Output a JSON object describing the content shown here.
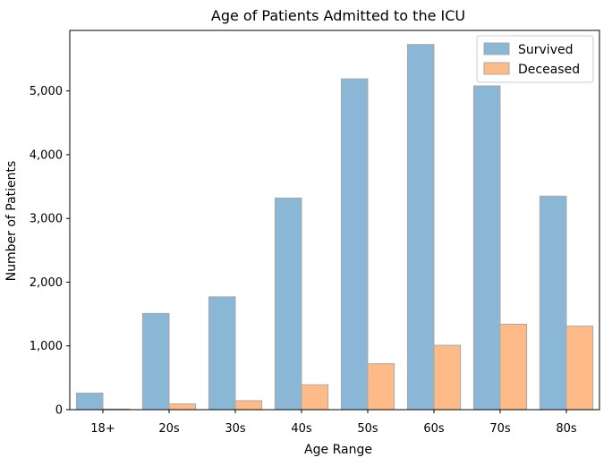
{
  "chart_data": {
    "type": "bar",
    "title": "Age of Patients Admitted to the ICU",
    "xlabel": "Age Range",
    "ylabel": "Number of Patients",
    "categories": [
      "18+",
      "20s",
      "30s",
      "40s",
      "50s",
      "60s",
      "70s",
      "80s"
    ],
    "series": [
      {
        "name": "Survived",
        "color": "#8bb7d6",
        "values": [
          260,
          1510,
          1770,
          3320,
          5190,
          5730,
          5080,
          3350
        ]
      },
      {
        "name": "Deceased",
        "color": "#ffbb87",
        "values": [
          10,
          90,
          140,
          390,
          720,
          1010,
          1340,
          1310
        ]
      }
    ],
    "ylim": [
      0,
      5950
    ],
    "yticks": [
      0,
      1000,
      2000,
      3000,
      4000,
      5000
    ],
    "ytick_labels": [
      "0",
      "1,000",
      "2,000",
      "3,000",
      "4,000",
      "5,000"
    ],
    "grid": false,
    "legend_position": "top-right"
  }
}
